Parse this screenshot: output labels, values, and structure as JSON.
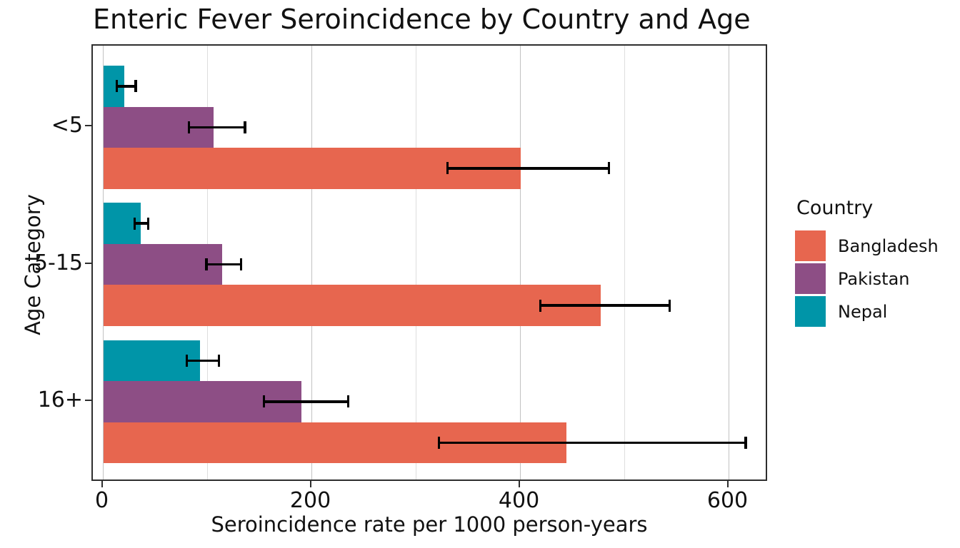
{
  "chart_data": {
    "type": "bar",
    "orientation": "horizontal",
    "title": "Enteric Fever Seroincidence by Country and Age",
    "xlabel": "Seroincidence rate per 1000 person-years",
    "ylabel": "Age Category",
    "categories": [
      "<5",
      "5-15",
      "16+"
    ],
    "series": [
      {
        "name": "Bangladesh",
        "color": "#E7664F",
        "values": [
          400,
          477,
          444
        ],
        "ci_low": [
          330,
          419,
          322
        ],
        "ci_high": [
          485,
          543,
          616
        ]
      },
      {
        "name": "Pakistan",
        "color": "#8D4E85",
        "values": [
          106,
          114,
          190
        ],
        "ci_low": [
          82,
          99,
          154
        ],
        "ci_high": [
          136,
          132,
          235
        ]
      },
      {
        "name": "Nepal",
        "color": "#0095A8",
        "values": [
          20,
          36,
          93
        ],
        "ci_low": [
          13,
          30,
          80
        ],
        "ci_high": [
          31,
          43,
          111
        ]
      }
    ],
    "x_ticks": [
      "0",
      "200",
      "400",
      "600"
    ],
    "x_tick_values": [
      0,
      200,
      400,
      600
    ],
    "x_minor_grid_values": [
      100,
      300,
      500
    ],
    "xlim": [
      -10,
      638
    ],
    "grid": "x",
    "error_bars": true,
    "error_bar_color": "#000000",
    "legend": {
      "title": "Country",
      "position": "right"
    },
    "colors": {
      "background": "#ffffff",
      "panel_border": "#2e2e2e",
      "grid_major": "#c2c2c2",
      "grid_minor": "#dedede",
      "text": "#111111"
    }
  }
}
